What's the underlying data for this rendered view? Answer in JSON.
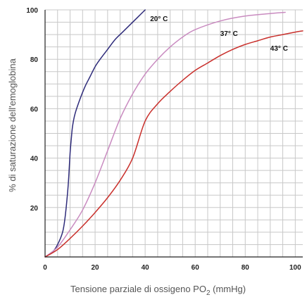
{
  "chart_data": {
    "type": "line",
    "xlabel_main": "Tensione parziale di ossigeno PO",
    "xlabel_sub": "2",
    "xlabel_unit": " (mmHg)",
    "ylabel": "% di saturazione dell'emoglobina",
    "xlim": [
      0,
      103
    ],
    "ylim": [
      0,
      100
    ],
    "xticks": [
      "0",
      "20",
      "40",
      "60",
      "80",
      "100"
    ],
    "yticks": [
      "20",
      "40",
      "60",
      "80",
      "100"
    ],
    "xtick_values": [
      0,
      20,
      40,
      60,
      80,
      100
    ],
    "ytick_values": [
      20,
      40,
      60,
      80,
      100
    ],
    "grid": true,
    "series": [
      {
        "name": "20° C",
        "color": "#2e2b7a",
        "x": [
          0,
          3,
          5,
          7,
          8,
          9,
          9.5,
          10,
          10.5,
          11,
          12,
          14,
          16,
          18,
          20,
          22,
          25,
          28,
          31,
          34,
          37,
          40
        ],
        "y": [
          0,
          2,
          5,
          10,
          16,
          26,
          33,
          42,
          48,
          53,
          58,
          64,
          69,
          73,
          77,
          80,
          84,
          88,
          91,
          94,
          97,
          100
        ]
      },
      {
        "name": "37° C",
        "color": "#c98bc0",
        "x": [
          0,
          5,
          10,
          15,
          20,
          25,
          30,
          35,
          40,
          45,
          50,
          55,
          60,
          70,
          80,
          90,
          96
        ],
        "y": [
          0,
          4,
          11,
          19,
          30,
          43,
          56,
          66,
          74,
          80,
          85,
          89,
          92,
          95.5,
          97.5,
          98.5,
          99
        ]
      },
      {
        "name": "43° C",
        "color": "#c9302c",
        "x": [
          0,
          5,
          10,
          15,
          20,
          25,
          30,
          35,
          40,
          45,
          50,
          55,
          60,
          65,
          70,
          75,
          80,
          85,
          90,
          95,
          100,
          103
        ],
        "y": [
          0,
          3,
          7.5,
          12.5,
          18,
          24,
          31,
          40,
          55,
          62,
          67,
          71.5,
          75.5,
          78.5,
          81.5,
          84,
          86,
          87.5,
          89,
          90,
          91,
          91.5
        ]
      }
    ],
    "labels": [
      {
        "text": "20° C",
        "x": 42,
        "y": 95.5
      },
      {
        "text": "37° C",
        "x": 70,
        "y": 89.5
      },
      {
        "text": "43° C",
        "x": 90,
        "y": 83.5
      }
    ]
  },
  "colors": {
    "grid": "#c8c8c8",
    "axis": "#222222",
    "axis_title": "#555555"
  }
}
